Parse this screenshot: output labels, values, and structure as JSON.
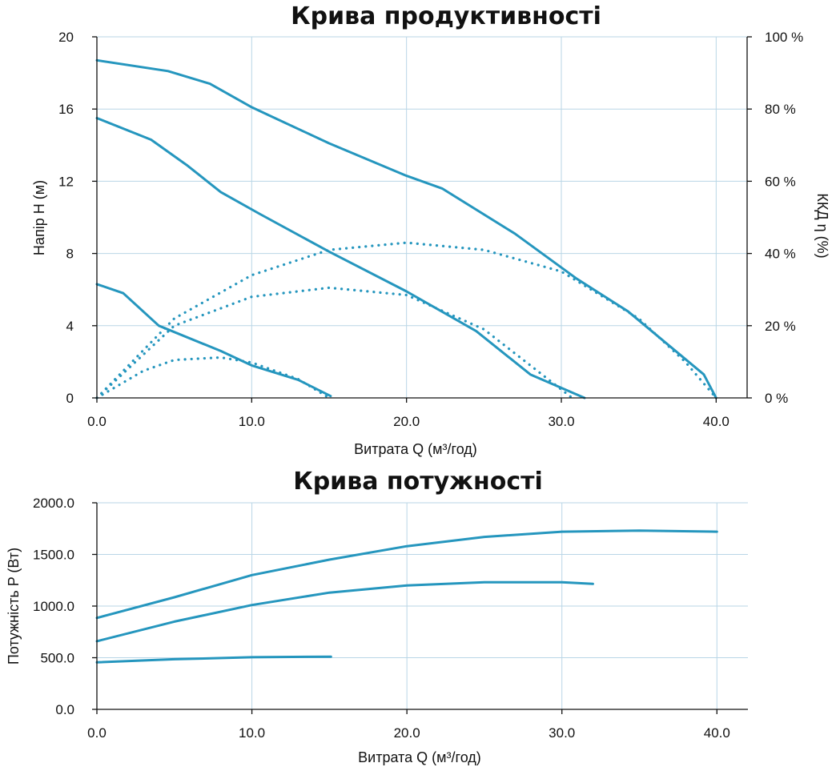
{
  "chart_data": [
    {
      "type": "line",
      "title": "Крива продуктивності",
      "xlabel": "Витрата Q (м³/год)",
      "ylabel": "Напір H (м)",
      "y2label": "ККД η (%)",
      "xlim": [
        0,
        40
      ],
      "ylim": [
        0,
        20
      ],
      "y2lim": [
        0,
        100
      ],
      "xticks": [
        0,
        10,
        20,
        30,
        40
      ],
      "xtick_labels": [
        "0.0",
        "10.0",
        "20.0",
        "30.0",
        "40.0"
      ],
      "yticks": [
        0,
        4,
        8,
        12,
        16,
        20
      ],
      "ytick_labels": [
        "0",
        "4",
        "8",
        "12",
        "16",
        "20"
      ],
      "y2ticks": [
        0,
        20,
        40,
        60,
        80,
        100
      ],
      "y2tick_labels": [
        "0 %",
        "20 %",
        "40 %",
        "60 %",
        "80 %",
        "100 %"
      ],
      "grid": true,
      "head_series": [
        {
          "x": [
            0,
            4.6,
            7.3,
            10,
            11,
            15,
            20,
            22.3,
            27,
            31,
            34.3,
            39.2,
            40
          ],
          "y": [
            18.7,
            18.1,
            17.4,
            16.1,
            15.7,
            14.1,
            12.3,
            11.6,
            9.1,
            6.6,
            4.8,
            1.3,
            0
          ]
        },
        {
          "x": [
            0,
            3.5,
            5.8,
            8,
            10.5,
            15,
            20,
            24.5,
            28,
            31.5
          ],
          "y": [
            15.5,
            14.3,
            12.9,
            11.4,
            10.2,
            8.1,
            5.9,
            3.7,
            1.3,
            0
          ]
        },
        {
          "x": [
            0,
            1.7,
            4,
            8,
            10,
            13,
            15.1
          ],
          "y": [
            6.3,
            5.8,
            4.0,
            2.6,
            1.8,
            1.0,
            0.1
          ]
        }
      ],
      "efficiency_series": [
        {
          "x": [
            0,
            5,
            10,
            15,
            20,
            25,
            30,
            35,
            38,
            40
          ],
          "y": [
            0,
            22,
            34,
            41,
            43,
            41,
            35,
            22,
            10,
            0
          ]
        },
        {
          "x": [
            0,
            5,
            10,
            15,
            20,
            25,
            28,
            30.7
          ],
          "y": [
            0,
            20,
            28,
            30.5,
            28.5,
            19,
            9,
            0
          ]
        },
        {
          "x": [
            0,
            3,
            5,
            8,
            10,
            13,
            15
          ],
          "y": [
            0,
            7.5,
            10.5,
            11.2,
            9.8,
            5.2,
            0
          ]
        }
      ]
    },
    {
      "type": "line",
      "title": "Крива потужності",
      "xlabel": "Витрата Q (м³/год)",
      "ylabel": "Потужність P (Вт)",
      "xlim": [
        0,
        42
      ],
      "ylim": [
        0,
        2000
      ],
      "xticks": [
        0,
        10,
        20,
        30,
        40
      ],
      "xtick_labels": [
        "0.0",
        "10.0",
        "20.0",
        "30.0",
        "40.0"
      ],
      "yticks": [
        0,
        500,
        1000,
        1500,
        2000
      ],
      "ytick_labels": [
        "0.0",
        "500.0",
        "1000.0",
        "1500.0",
        "2000.0"
      ],
      "grid": true,
      "series": [
        {
          "x": [
            0,
            5,
            10,
            15,
            20,
            25,
            30,
            35,
            40
          ],
          "y": [
            885,
            1085,
            1300,
            1450,
            1580,
            1670,
            1720,
            1730,
            1720
          ]
        },
        {
          "x": [
            0,
            5,
            10,
            15,
            20,
            25,
            30,
            32
          ],
          "y": [
            660,
            850,
            1010,
            1130,
            1200,
            1230,
            1230,
            1215
          ]
        },
        {
          "x": [
            0,
            5,
            10,
            15.1
          ],
          "y": [
            455,
            485,
            505,
            510
          ]
        }
      ]
    }
  ]
}
